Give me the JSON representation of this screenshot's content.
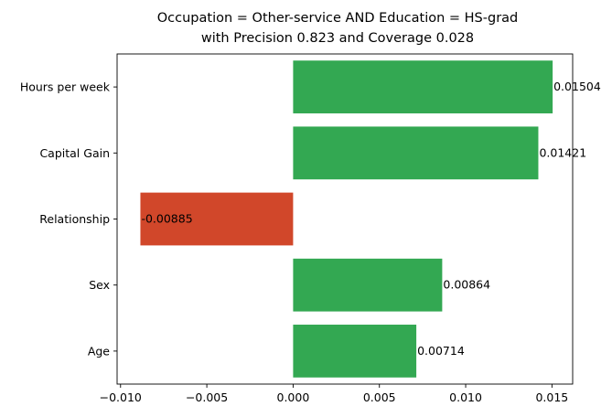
{
  "chart_data": {
    "type": "bar",
    "orientation": "horizontal",
    "title": "Occupation = Other-service AND Education = HS-grad",
    "subtitle": "with Precision 0.823 and Coverage 0.028",
    "categories": [
      "Hours per week",
      "Capital Gain",
      "Relationship",
      "Sex",
      "Age"
    ],
    "values": [
      0.01504,
      0.01421,
      -0.00885,
      0.00864,
      0.00714
    ],
    "data_labels": [
      "0.01504",
      "0.01421",
      "-0.00885",
      "0.00864",
      "0.00714"
    ],
    "xlim": [
      -0.0102,
      0.0162
    ],
    "x_ticks": [
      -0.01,
      -0.005,
      0.0,
      0.005,
      0.01,
      0.015
    ],
    "x_tick_labels": [
      "−0.010",
      "−0.005",
      "0.000",
      "0.005",
      "0.010",
      "0.015"
    ],
    "xlabel": "",
    "ylabel": "",
    "grid": false,
    "colors": {
      "positive": "#33a852",
      "negative": "#d1472a",
      "axis": "#000000"
    }
  }
}
